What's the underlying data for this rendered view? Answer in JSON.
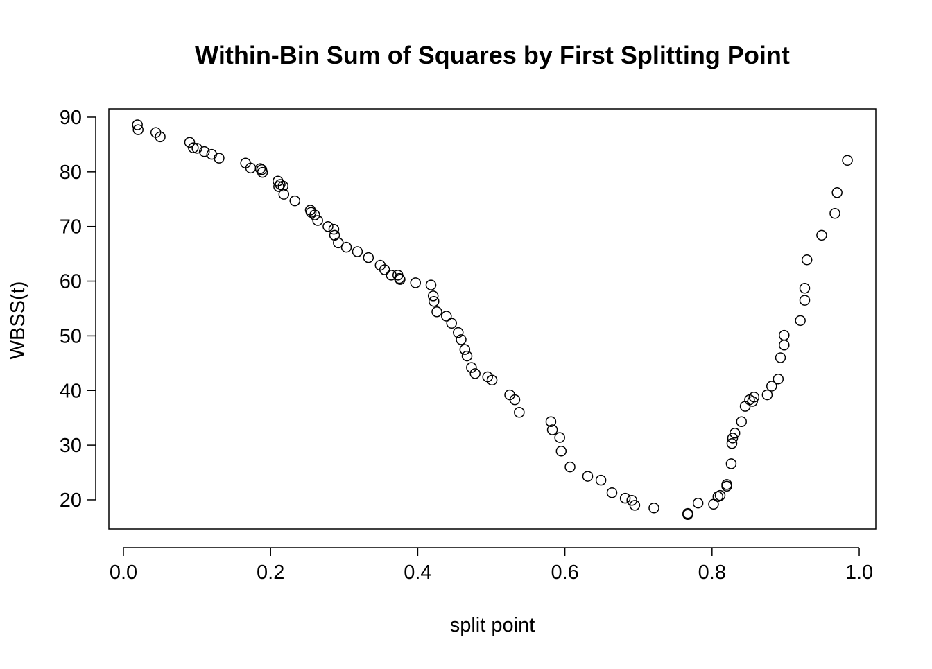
{
  "chart_data": {
    "type": "scatter",
    "title": "Within-Bin Sum of Squares by First Splitting Point",
    "x_label": "split point",
    "y_label": "WBSS(t)",
    "color": "#000000",
    "xlim": [
      -0.0198,
      1.0226
    ],
    "ylim": [
      14.67,
      91.52
    ],
    "xticks": [
      {
        "value": 0,
        "label": "0.0"
      },
      0.2,
      0.4,
      0.6,
      0.8,
      {
        "value": 1,
        "label": "1.0"
      }
    ],
    "yticks": [
      20,
      30,
      40,
      50,
      60,
      70,
      80,
      90
    ],
    "x": [
      0.019,
      0.02,
      0.044,
      0.05,
      0.09,
      0.095,
      0.1,
      0.11,
      0.12,
      0.13,
      0.166,
      0.173,
      0.186,
      0.188,
      0.189,
      0.21,
      0.213,
      0.211,
      0.217,
      0.218,
      0.233,
      0.254,
      0.255,
      0.26,
      0.264,
      0.278,
      0.286,
      0.287,
      0.292,
      0.303,
      0.318,
      0.333,
      0.349,
      0.355,
      0.364,
      0.373,
      0.375,
      0.376,
      0.397,
      0.418,
      0.421,
      0.422,
      0.426,
      0.439,
      0.446,
      0.455,
      0.459,
      0.464,
      0.467,
      0.473,
      0.478,
      0.495,
      0.501,
      0.525,
      0.532,
      0.538,
      0.581,
      0.583,
      0.593,
      0.595,
      0.607,
      0.631,
      0.649,
      0.664,
      0.682,
      0.691,
      0.695,
      0.721,
      0.767,
      0.767,
      0.781,
      0.802,
      0.808,
      0.811,
      0.82,
      0.82,
      0.826,
      0.827,
      0.828,
      0.831,
      0.84,
      0.845,
      0.851,
      0.855,
      0.857,
      0.875,
      0.881,
      0.89,
      0.893,
      0.898,
      0.898,
      0.92,
      0.926,
      0.926,
      0.929,
      0.949,
      0.967,
      0.97,
      0.984
    ],
    "values": [
      88.6,
      87.7,
      87.2,
      86.4,
      85.4,
      84.4,
      84.3,
      83.7,
      83.2,
      82.5,
      81.6,
      80.7,
      80.6,
      80.4,
      79.9,
      78.3,
      77.7,
      77.3,
      77.4,
      75.9,
      74.7,
      73.0,
      72.6,
      72.1,
      71.1,
      70.0,
      69.5,
      68.4,
      67.0,
      66.2,
      65.4,
      64.3,
      62.9,
      62.1,
      61.1,
      61.1,
      60.5,
      60.3,
      59.7,
      59.3,
      57.3,
      56.3,
      54.4,
      53.6,
      52.3,
      50.6,
      49.3,
      47.5,
      46.3,
      44.2,
      43.1,
      42.5,
      41.9,
      39.2,
      38.3,
      36.0,
      34.3,
      32.8,
      31.4,
      28.9,
      26.0,
      24.3,
      23.6,
      21.3,
      20.3,
      19.9,
      19.0,
      18.5,
      17.5,
      17.3,
      19.4,
      19.2,
      20.6,
      20.8,
      22.5,
      22.8,
      26.6,
      30.3,
      31.3,
      32.2,
      34.3,
      37.1,
      38.3,
      38.0,
      38.8,
      39.2,
      40.8,
      42.1,
      46.0,
      48.3,
      50.1,
      52.8,
      56.5,
      58.7,
      63.9,
      68.4,
      72.4,
      76.2,
      82.1
    ]
  }
}
